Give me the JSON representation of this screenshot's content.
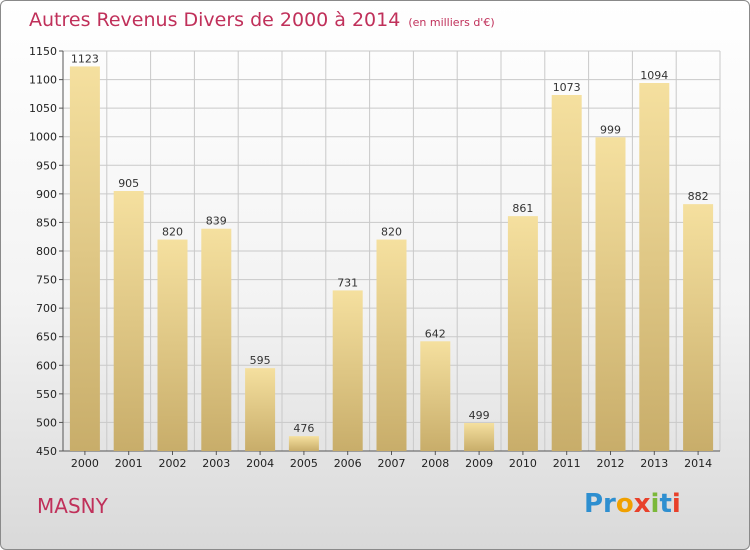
{
  "title": "Autres Revenus Divers de 2000 à 2014",
  "unit": "(en milliers d'€)",
  "commune": "MASNY",
  "logo": {
    "p1": "Pr",
    "p2": "o",
    "p3": "x",
    "p4": "i",
    "p5": "t",
    "p6": "i"
  },
  "colors": {
    "title": "#c0305a",
    "bar_light": "#f5e09f",
    "bar_dark": "#c8ad6a",
    "grid": "#c9c9c9"
  },
  "chart_data": {
    "type": "bar",
    "title": "Autres Revenus Divers de 2000 à 2014",
    "xlabel": "",
    "ylabel": "",
    "categories": [
      "2000",
      "2001",
      "2002",
      "2003",
      "2004",
      "2005",
      "2006",
      "2007",
      "2008",
      "2009",
      "2010",
      "2011",
      "2012",
      "2013",
      "2014"
    ],
    "values": [
      1123,
      905,
      820,
      839,
      595,
      476,
      731,
      820,
      642,
      499,
      861,
      1073,
      999,
      1094,
      882
    ],
    "ylim": [
      450,
      1150
    ],
    "yticks": [
      450,
      500,
      550,
      600,
      650,
      700,
      750,
      800,
      850,
      900,
      950,
      1000,
      1050,
      1100,
      1150
    ],
    "grid": true
  }
}
